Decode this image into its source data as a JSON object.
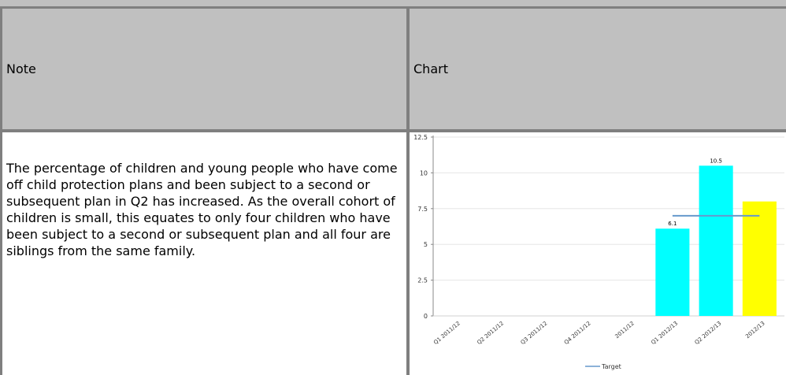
{
  "table": {
    "header_note": "Note",
    "header_chart": "Chart",
    "note_text": "The percentage of children and young people who have come off child protection plans and been subject to a second or subsequent plan in Q2 has increased. As the overall cohort of children is small, this equates to only four children who have been subject to a second or subsequent plan and all four are siblings from the same family."
  },
  "chart_data": {
    "type": "bar",
    "categories": [
      "Q1 2011/12",
      "Q2 2011/12",
      "Q3 2011/12",
      "Q4 2011/12",
      "2011/12",
      "Q1 2012/13",
      "Q2 2012/13",
      "2012/13"
    ],
    "values": [
      null,
      null,
      null,
      null,
      null,
      6.1,
      10.5,
      8.0
    ],
    "data_labels": [
      "",
      "",
      "",
      "",
      "",
      "6.1",
      "10.5",
      ""
    ],
    "bar_colors": [
      "#00ffff",
      "#00ffff",
      "#00ffff",
      "#00ffff",
      "#00ffff",
      "#00ffff",
      "#00ffff",
      "#ffff00"
    ],
    "ylim": [
      0,
      12.5
    ],
    "yticks": [
      "0",
      "2.5",
      "5",
      "7.5",
      "10",
      "12.5"
    ],
    "target": {
      "name": "Target",
      "value": 7.0,
      "from_category": "Q1 2012/13",
      "to_category": "2012/13",
      "color": "#6699cc"
    },
    "grid": true,
    "legend": "bottom"
  }
}
